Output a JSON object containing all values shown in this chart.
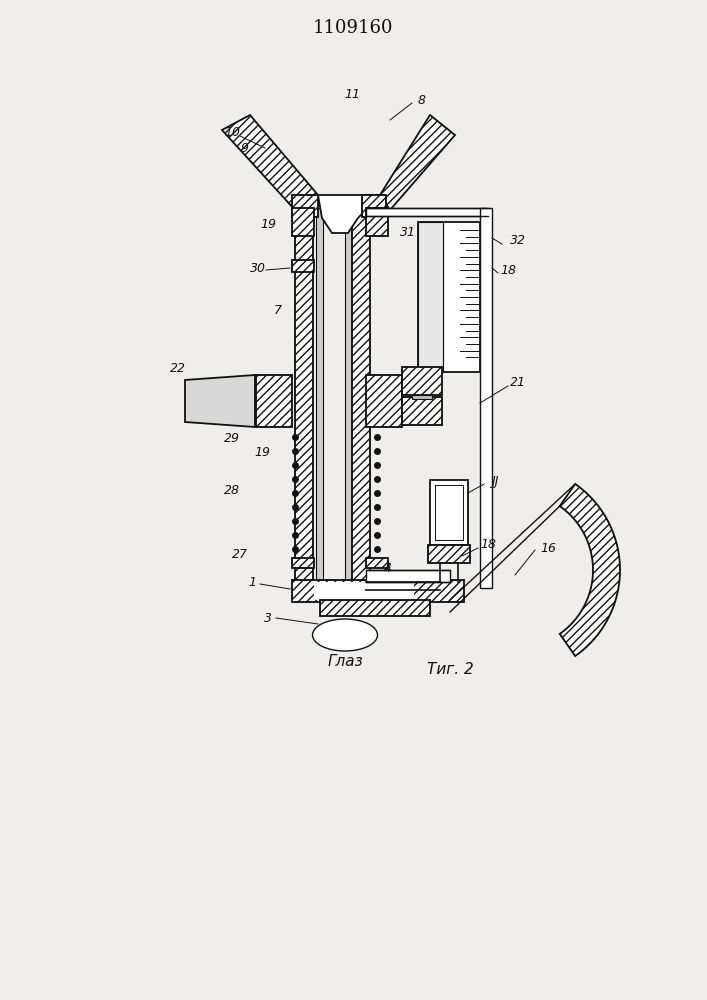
{
  "title": "1109160",
  "fig_label": "Τиг. 2",
  "eye_label": "Глаз",
  "bg_color": "#f0eeea",
  "line_color": "#111111"
}
